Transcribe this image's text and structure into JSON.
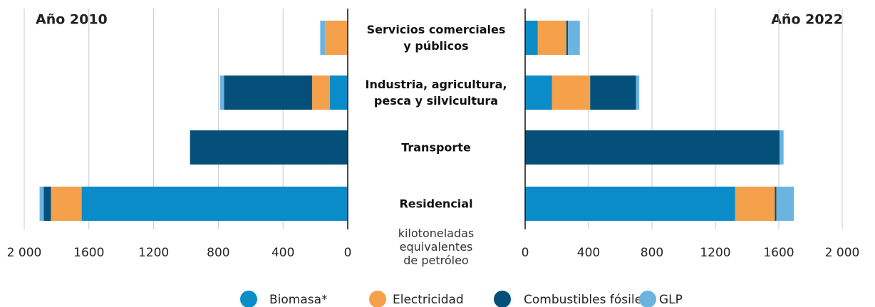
{
  "chart_data": {
    "type": "bar",
    "xlabel": "kilotoneladas\nequivalentes\nde petróleo",
    "categories": [
      "Servicios comerciales\ny públicos",
      "Industria, agricultura,\npesca y silvicultura",
      "Transporte",
      "Residencial"
    ],
    "panels": [
      {
        "title": "Año 2010",
        "reversed": true,
        "xlim": [
          0,
          2000
        ],
        "xticks": [
          {
            "value": 2000,
            "label": "2 000"
          },
          1600,
          1200,
          800,
          400,
          0
        ]
      },
      {
        "title": "Año 2022",
        "reversed": false,
        "xlim": [
          0,
          2000
        ],
        "xticks": [
          0,
          400,
          800,
          1200,
          1600,
          {
            "value": 2000,
            "label": "2 000"
          }
        ]
      }
    ],
    "grid": true,
    "series": [
      {
        "name": "Biomasa*",
        "color": "#0a8cc9",
        "values": [
          [
            0,
            110,
            0,
            1645
          ],
          [
            80,
            170,
            0,
            1325
          ]
        ]
      },
      {
        "name": "Electricidad",
        "color": "#f5a04a",
        "values": [
          [
            140,
            110,
            0,
            190
          ],
          [
            180,
            240,
            0,
            250
          ]
        ]
      },
      {
        "name": "Combustibles fósiles",
        "color": "#04507a",
        "values": [
          [
            0,
            545,
            975,
            45
          ],
          [
            10,
            290,
            1605,
            10
          ]
        ]
      },
      {
        "name": "GLP",
        "color": "#6cb4e0",
        "values": [
          [
            30,
            25,
            0,
            25
          ],
          [
            75,
            20,
            25,
            110
          ]
        ]
      }
    ]
  }
}
